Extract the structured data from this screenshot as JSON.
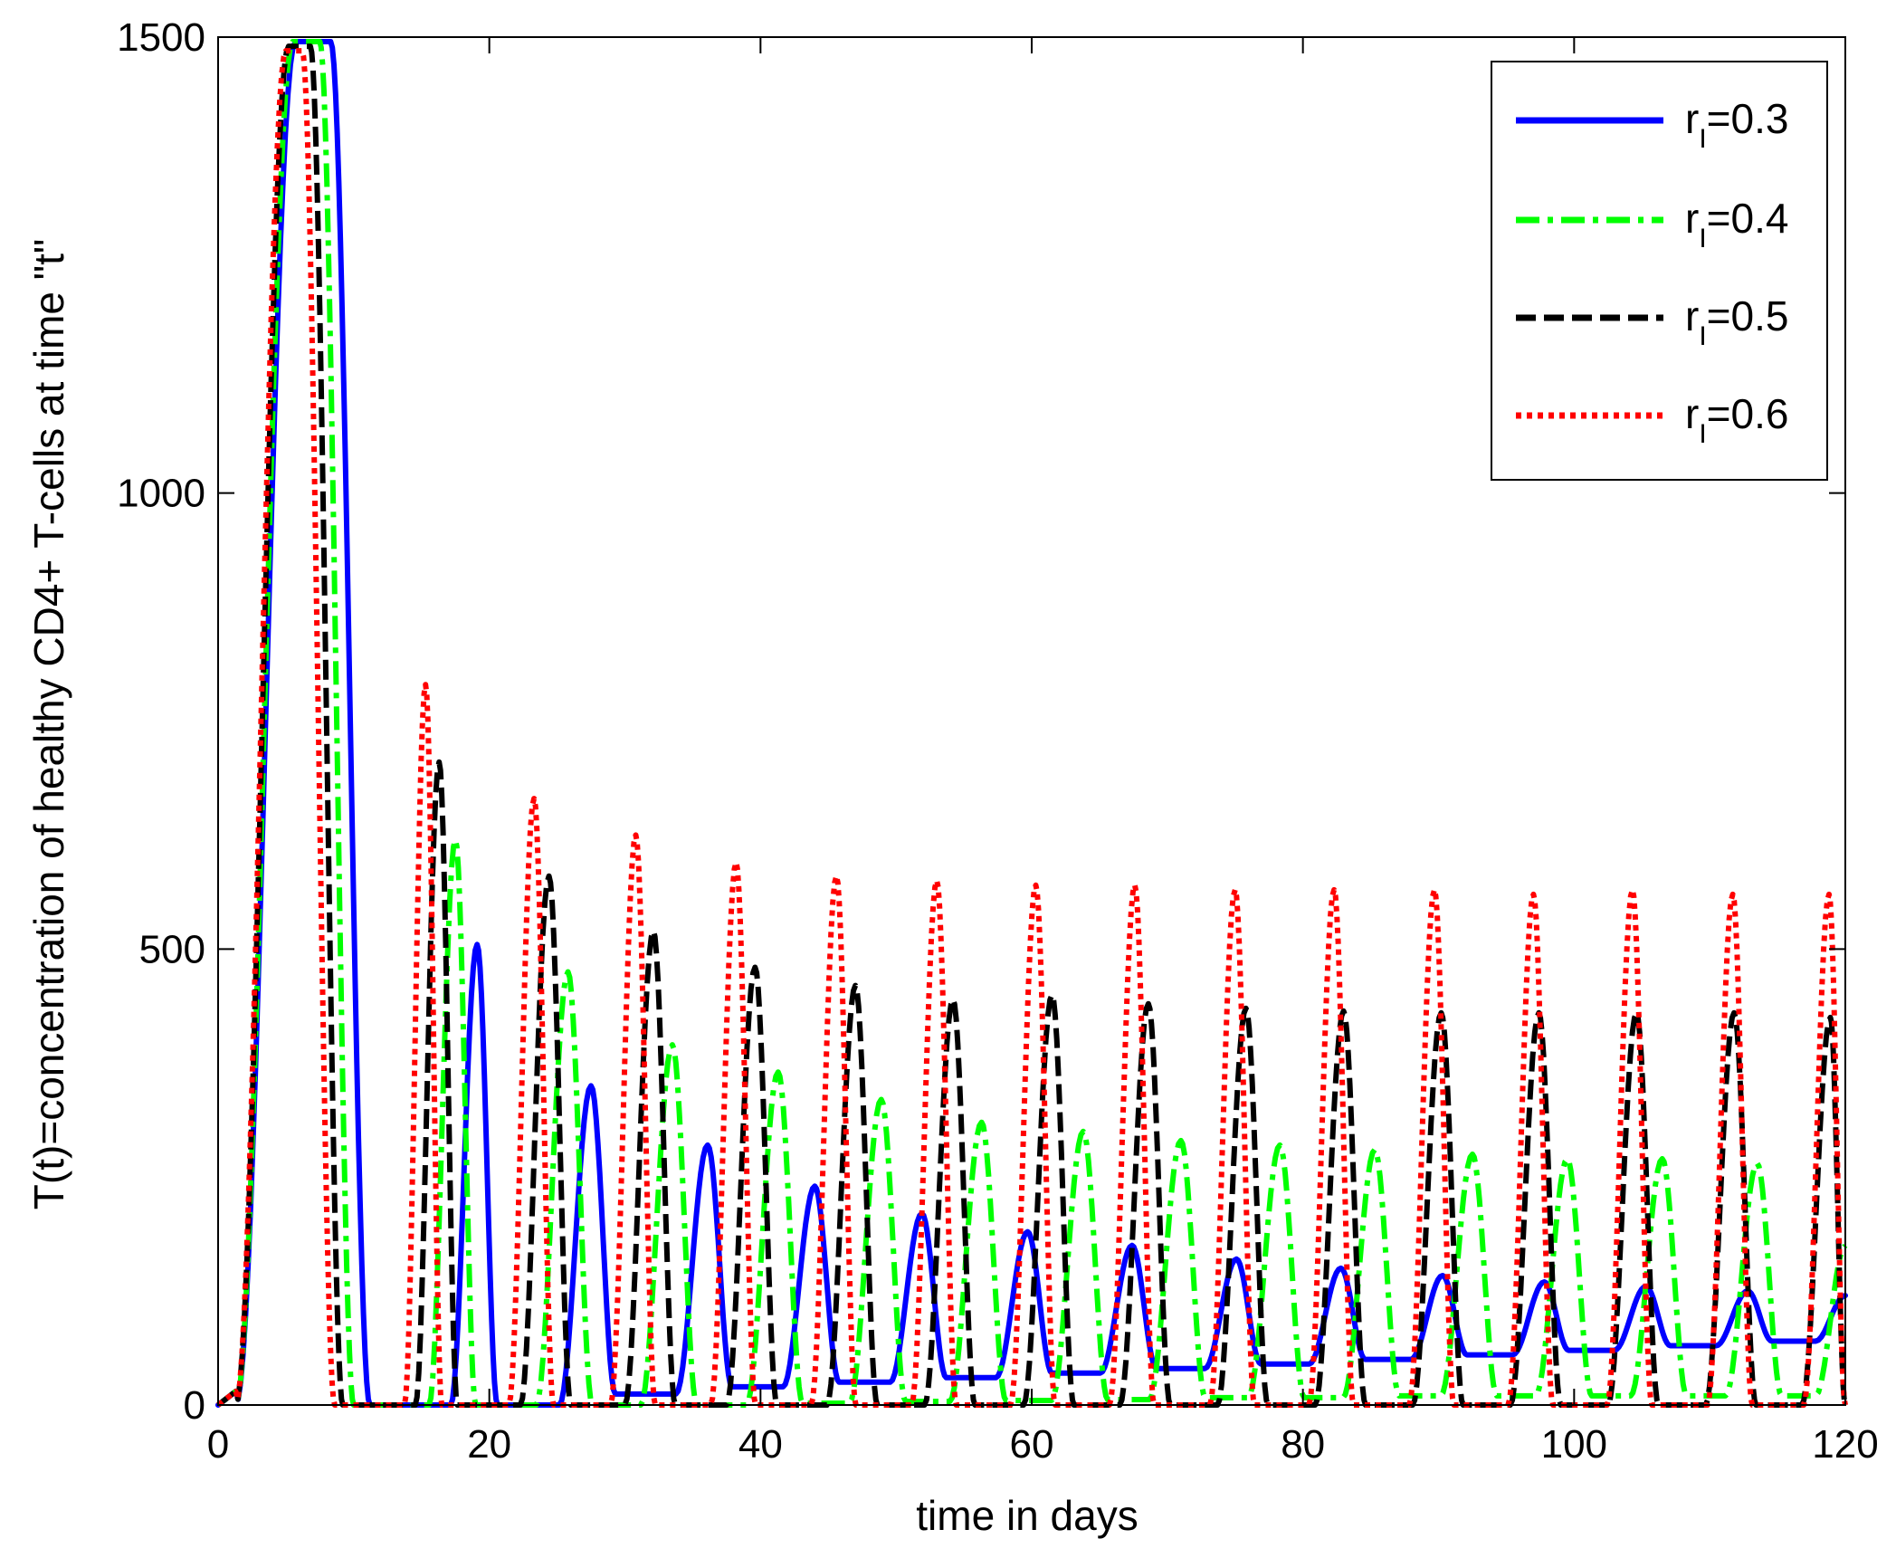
{
  "chart_data": {
    "type": "line",
    "title": "",
    "xlabel": "time in days",
    "ylabel": "T(t)=concentration of healthy CD4+ T-cells at time \"t\"",
    "xlim": [
      0,
      120
    ],
    "ylim": [
      0,
      1500
    ],
    "x_ticks": [
      0,
      20,
      40,
      60,
      80,
      100,
      120
    ],
    "y_ticks": [
      0,
      500,
      1000,
      1500
    ],
    "x_tick_labels": [
      "0",
      "20",
      "40",
      "60",
      "80",
      "100",
      "120"
    ],
    "y_tick_labels": [
      "0",
      "500",
      "1000",
      "1500"
    ],
    "grid": false,
    "legend_position": "top-right",
    "series": [
      {
        "name": "rI=0.3",
        "legend_prefix": "r",
        "legend_subscript": "I",
        "legend_suffix": "=0.3",
        "color": "#0000ff",
        "style": "solid",
        "initial_peak": {
          "rise_start": 1.3,
          "top_start": 5.7,
          "top_end": 8.3,
          "fall_end": 11.2,
          "top_value": 1495
        },
        "peaks_x": [
          19.1,
          27.5,
          36.1,
          44.0,
          51.9,
          59.7,
          67.4,
          75.1,
          82.8,
          90.3,
          97.8,
          105.3,
          112.8
        ],
        "peaks_y": [
          505,
          350,
          285,
          240,
          210,
          190,
          175,
          160,
          150,
          142,
          135,
          130,
          125
        ],
        "troughs_y": [
          0,
          0,
          12,
          20,
          25,
          30,
          35,
          40,
          45,
          50,
          55,
          60,
          65,
          70
        ],
        "end_value": 120,
        "width": 1.0
      },
      {
        "name": "rI=0.4",
        "legend_prefix": "r",
        "legend_subscript": "I",
        "legend_suffix": "=0.4",
        "color": "#00ff00",
        "style": "dashdot",
        "initial_peak": {
          "rise_start": 1.3,
          "top_start": 5.5,
          "top_end": 7.5,
          "fall_end": 10.0,
          "top_value": 1495
        },
        "peaks_x": [
          17.5,
          25.8,
          33.5,
          41.3,
          48.9,
          56.3,
          63.8,
          71.0,
          78.3,
          85.3,
          92.5,
          99.5,
          106.5,
          113.5
        ],
        "peaks_y": [
          620,
          475,
          395,
          365,
          335,
          310,
          300,
          290,
          285,
          280,
          275,
          270,
          270,
          265
        ],
        "troughs_y": [
          0,
          0,
          0,
          0,
          2,
          4,
          5,
          6,
          8,
          8,
          10,
          10,
          10,
          10,
          10
        ],
        "end_value": 175,
        "width": 1.0
      },
      {
        "name": "rI=0.5",
        "legend_prefix": "r",
        "legend_subscript": "I",
        "legend_suffix": "=0.5",
        "color": "#000000",
        "style": "dashed",
        "initial_peak": {
          "rise_start": 1.3,
          "top_start": 5.2,
          "top_end": 6.8,
          "fall_end": 9.2,
          "top_value": 1490
        },
        "peaks_x": [
          16.3,
          24.4,
          32.1,
          39.6,
          47.0,
          54.2,
          61.5,
          68.6,
          75.8,
          83.0,
          90.2,
          97.4,
          104.6,
          111.8,
          118.9
        ],
        "peaks_y": [
          705,
          580,
          520,
          480,
          460,
          445,
          450,
          440,
          435,
          432,
          430,
          430,
          430,
          430,
          425
        ],
        "troughs_y": [
          0,
          0,
          0,
          0,
          0,
          0,
          0,
          0,
          0,
          0,
          0,
          0,
          0,
          0,
          0,
          0
        ],
        "end_value": 290,
        "width": 0.9
      },
      {
        "name": "rI=0.6",
        "legend_prefix": "r",
        "legend_subscript": "I",
        "legend_suffix": "=0.6",
        "color": "#ff0000",
        "style": "dotted",
        "initial_peak": {
          "rise_start": 1.3,
          "top_start": 5.0,
          "top_end": 6.2,
          "fall_end": 8.6,
          "top_value": 1485
        },
        "peaks_x": [
          15.3,
          23.3,
          30.8,
          38.2,
          45.6,
          53.0,
          60.3,
          67.6,
          75.0,
          82.3,
          89.7,
          97.0,
          104.3,
          111.7,
          118.8
        ],
        "peaks_y": [
          790,
          665,
          625,
          595,
          580,
          575,
          570,
          570,
          565,
          565,
          565,
          560,
          565,
          560,
          560
        ],
        "troughs_y": [
          0,
          0,
          0,
          0,
          0,
          0,
          0,
          0,
          0,
          0,
          0,
          0,
          0,
          0,
          0,
          0
        ],
        "end_value": 170,
        "width": 0.8
      }
    ]
  }
}
